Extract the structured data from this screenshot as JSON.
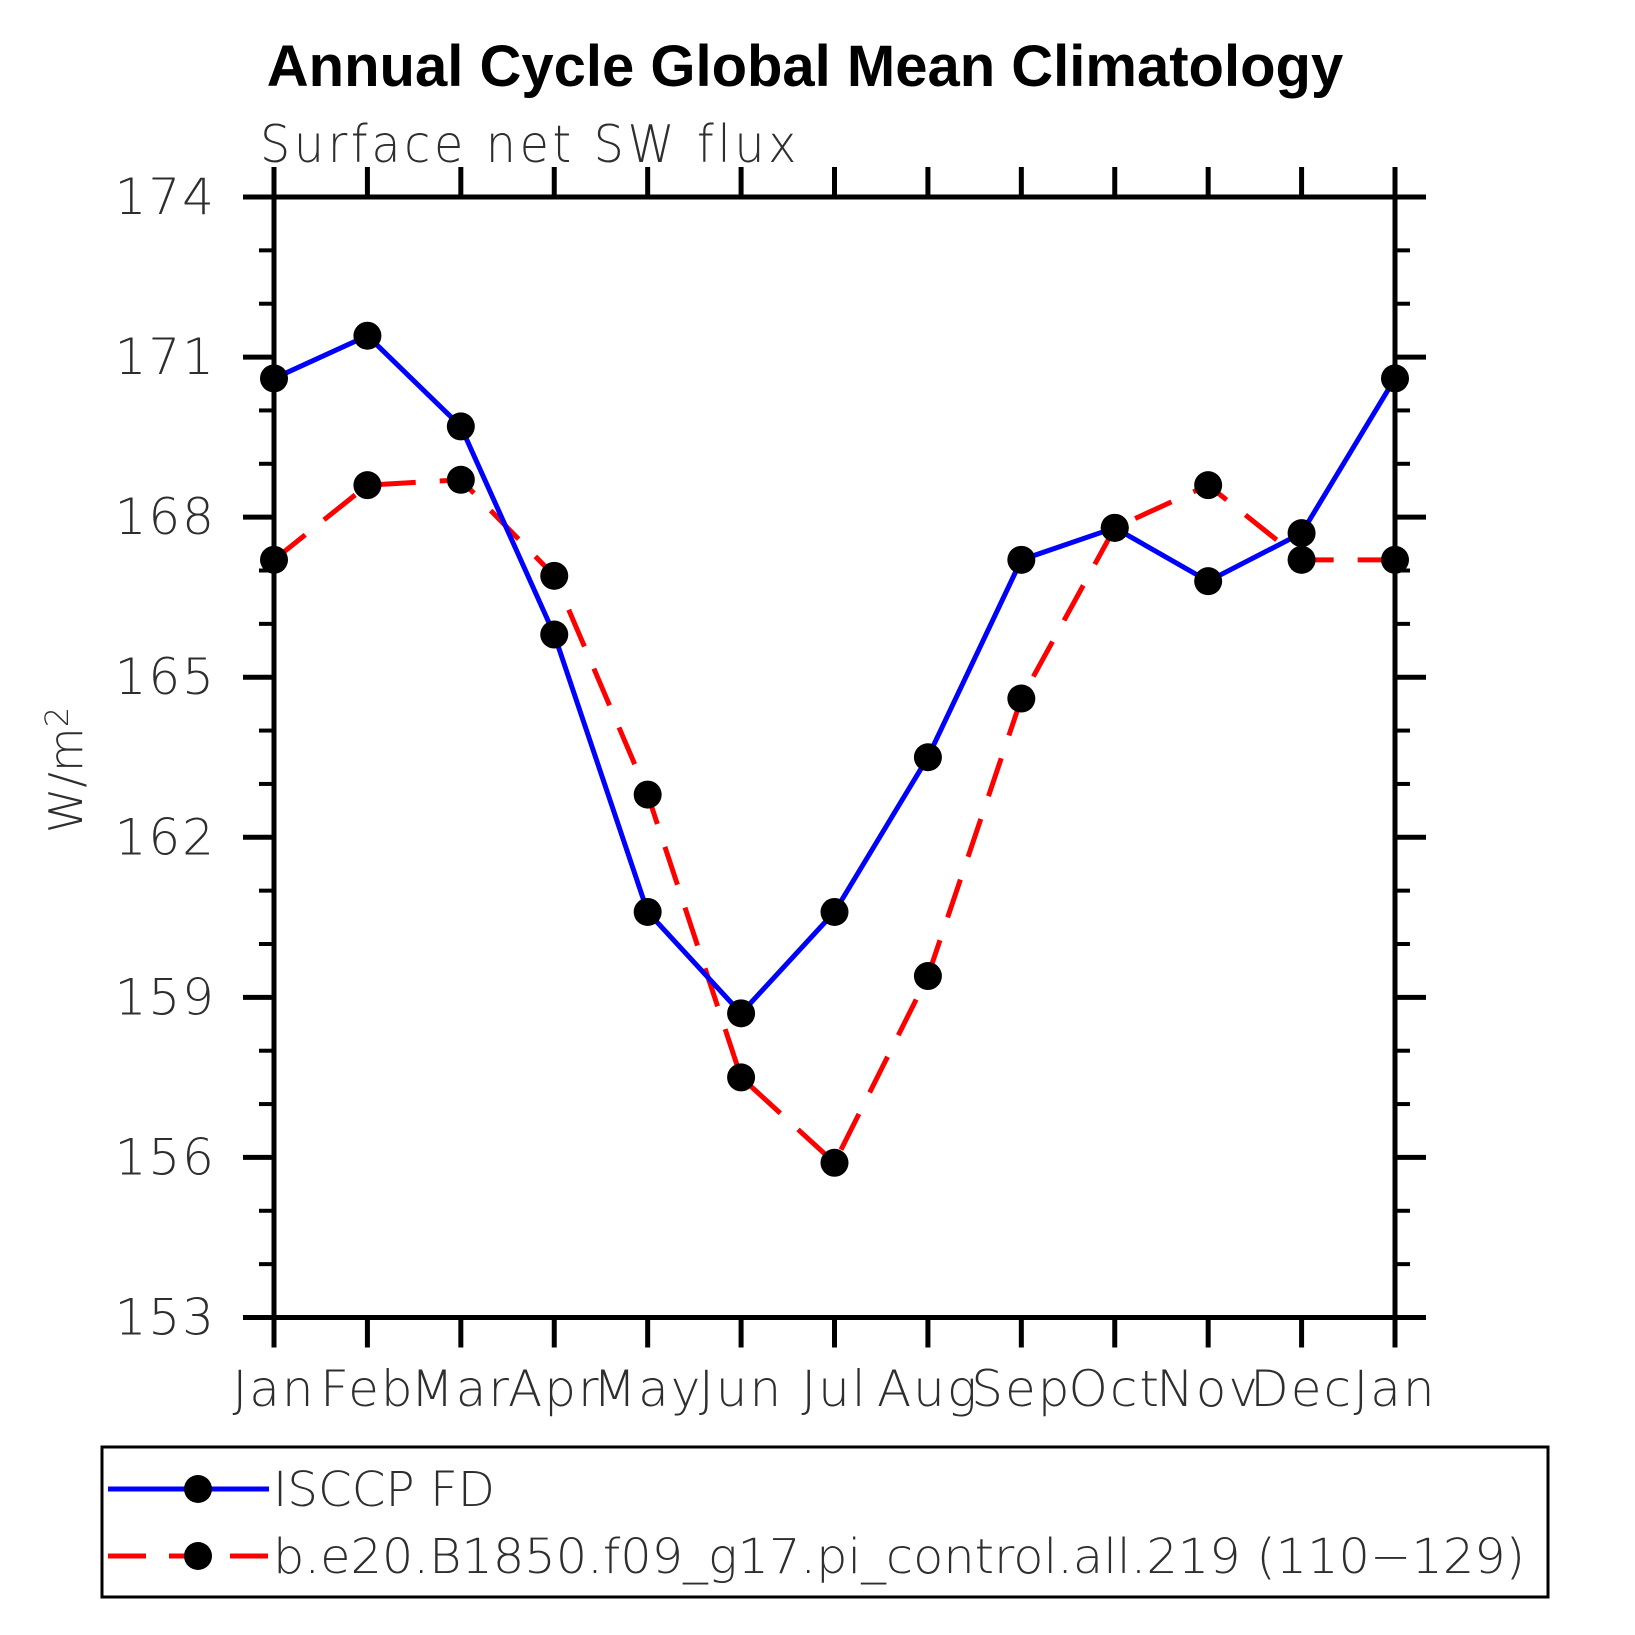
{
  "title": "Annual Cycle Global Mean Climatology",
  "subtitle": "Surface net SW flux",
  "y_axis_label": {
    "base": "W/m",
    "sup": "2"
  },
  "colors": {
    "series1": "#0000ff",
    "series2": "#ff0000",
    "marker": "#000000",
    "axis": "#000000",
    "background": "#ffffff"
  },
  "legend": {
    "entry1_label": "ISCCP FD",
    "entry2_label": "b.e20.B1850.f09_g17.pi_control.all.219 (110−129)"
  },
  "chart_data": {
    "type": "line",
    "categories": [
      "Jan",
      "Feb",
      "Mar",
      "Apr",
      "May",
      "Jun",
      "Jul",
      "Aug",
      "Sep",
      "Oct",
      "Nov",
      "Dec",
      "Jan"
    ],
    "series": [
      {
        "name": "ISCCP FD",
        "color": "#0000ff",
        "line_style": "solid",
        "marker": "filled-circle",
        "marker_color": "#000000",
        "values": [
          170.6,
          171.4,
          169.7,
          165.8,
          160.6,
          158.7,
          160.6,
          163.5,
          167.2,
          167.8,
          166.8,
          167.7,
          170.6
        ]
      },
      {
        "name": "b.e20.B1850.f09_g17.pi_control.all.219 (110−129)",
        "color": "#ff0000",
        "line_style": "dashed",
        "marker": "filled-circle",
        "marker_color": "#000000",
        "values": [
          167.2,
          168.6,
          168.7,
          166.9,
          162.8,
          157.5,
          155.9,
          159.4,
          164.6,
          167.8,
          168.6,
          167.2,
          167.2
        ]
      }
    ],
    "title": "Annual Cycle Global Mean Climatology",
    "subtitle": "Surface net SW flux",
    "xlabel": "",
    "ylabel": "W/m2",
    "ylim": [
      153,
      174
    ],
    "ytick_step": 3,
    "yminor_step": 1,
    "yticks": [
      153,
      156,
      159,
      162,
      165,
      168,
      171,
      174
    ],
    "grid": false,
    "legend_position": "bottom"
  }
}
